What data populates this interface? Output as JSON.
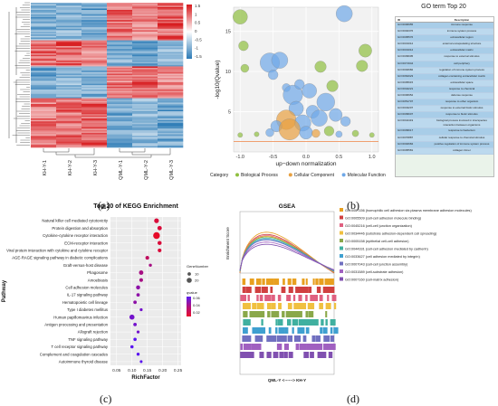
{
  "captions": {
    "a": "(a)",
    "b": "(b)",
    "c": "(c)",
    "d": "(d)"
  },
  "heatmap": {
    "samples": [
      "KH-Y-1",
      "KH-Y-2",
      "KH-Y-3",
      "QML-Y-1",
      "QML-Y-2",
      "QML-Y-3"
    ],
    "legend_ticks": [
      "1.5",
      "1",
      "0.5",
      "0",
      "-0.5",
      "-1",
      "-1.5"
    ],
    "colors": {
      "high": "#d7191c",
      "mid": "#ffffff",
      "low": "#2c7bb6"
    }
  },
  "bubble": {
    "ylabel": "-log10(Qvalue)",
    "xlabel": "up−down normalization",
    "xticks": [
      "-1.0",
      "-0.5",
      "0.0",
      "0.5",
      "1.0"
    ],
    "yticks": [
      "5",
      "10",
      "15"
    ],
    "legend_title": "Category",
    "legend": [
      {
        "name": "Biological Process",
        "color": "#8fbf3f"
      },
      {
        "name": "Cellular Component",
        "color": "#e8a040"
      },
      {
        "name": "Molecular Function",
        "color": "#6fa8e8"
      }
    ]
  },
  "go_table": {
    "title": "GO term Top 20",
    "headers": [
      "ID",
      "Description"
    ],
    "rows": [
      [
        "GO:0006955",
        "immune response"
      ],
      [
        "GO:0002376",
        "immune system process"
      ],
      [
        "GO:0005576",
        "extracellular region"
      ],
      [
        "GO:0031012",
        "external encapsulating structure"
      ],
      [
        "GO:0031012",
        "extracellular matrix"
      ],
      [
        "GO:0009605",
        "response to external stimulus"
      ],
      [
        "GO:0071944",
        "cell periphery"
      ],
      [
        "GO:0002682",
        "regulation of immune system process"
      ],
      [
        "GO:0062023",
        "collagen-containing extracellular matrix"
      ],
      [
        "GO:0005615",
        "extracellular space"
      ],
      [
        "GO:0042221",
        "response to chemical"
      ],
      [
        "GO:0006952",
        "defense response"
      ],
      [
        "GO:0051707",
        "response to other organism"
      ],
      [
        "GO:0043207",
        "response to external biotic stimulus"
      ],
      [
        "GO:0009607",
        "response to biotic stimulus"
      ],
      [
        "GO:0044419",
        "biological process involved in interspecies interaction between organisms"
      ],
      [
        "GO:0009617",
        "response to bacterium"
      ],
      [
        "GO:0070887",
        "cellular response to chemical stimulus"
      ],
      [
        "GO:0002684",
        "positive regulation of immune system process"
      ],
      [
        "GO:0005581",
        "collagen trimer"
      ]
    ]
  },
  "kegg": {
    "title": "Top 20 of KEGG Enrichment",
    "ylabel": "Pathway",
    "xlabel": "RichFactor",
    "xticks": [
      "0.05",
      "0.10",
      "0.15",
      "0.20",
      "0.25"
    ],
    "legend_count_title": "GeneNumber",
    "legend_counts": [
      "10",
      "20"
    ],
    "legend_q_title": "qvalue",
    "legend_q_ticks": [
      "0.06",
      "0.04",
      "0.02"
    ]
  },
  "gsea": {
    "title": "GSEA",
    "ylabel": "Enrichment Score",
    "xlabel": "QML-Y <------> KH-Y",
    "legend": [
      "GO:0007156 (homophilic cell adhesion via plasma membrane adhesion molecules)",
      "GO:0005509 (cell-cell adhesion molecule binding)",
      "GO:0045216 (cell-cell junction organization)",
      "GO:0034446 (substrate adhesion-dependent cell spreading)",
      "GO:0005158 (epithelial cell-cell adhesion)",
      "GO:0044331 (cell-cell adhesion mediated by cadherin)",
      "GO:0033627 (cell adhesion mediated by integrin)",
      "GO:0007043 (cell-cell junction assembly)",
      "GO:0031589 (cell-substrate adhesion)",
      "GO:0007160 (cell-matrix adhesion)"
    ],
    "colors": [
      "#e8a020",
      "#d04040",
      "#e06080",
      "#f0c040",
      "#8aa84a",
      "#40b0a0",
      "#3fa0d0",
      "#7070c0",
      "#a060c0",
      "#8050b0"
    ]
  },
  "chart_data": [
    {
      "type": "heatmap",
      "columns": [
        "KH-Y-1",
        "KH-Y-2",
        "KH-Y-3",
        "QML-Y-1",
        "QML-Y-2",
        "QML-Y-3"
      ],
      "blocks": [
        {
          "fraction": 0.26,
          "values": [
            -1.2,
            -1.1,
            -1.3,
            1.2,
            1.0,
            1.3
          ]
        },
        {
          "fraction": 0.18,
          "values": [
            1.2,
            1.3,
            1.0,
            -1.1,
            -1.3,
            -1.0
          ]
        },
        {
          "fraction": 0.22,
          "values": [
            -1.3,
            -1.0,
            -1.2,
            1.1,
            1.3,
            1.0
          ]
        },
        {
          "fraction": 0.34,
          "values": [
            1.1,
            1.2,
            1.3,
            -1.2,
            -1.0,
            -1.3
          ]
        }
      ],
      "colorbar": [
        -1.5,
        1.5
      ]
    },
    {
      "type": "scatter",
      "xlabel": "up−down normalization",
      "ylabel": "-log10(Qvalue)",
      "xlim": [
        -1.1,
        1.1
      ],
      "ylim": [
        0,
        18
      ],
      "points": [
        {
          "x": -1.0,
          "y": 16.8,
          "size": 9,
          "cat": "Biological Process"
        },
        {
          "x": -0.95,
          "y": 13.2,
          "size": 6,
          "cat": "Biological Process"
        },
        {
          "x": -0.93,
          "y": 10.4,
          "size": 5,
          "cat": "Biological Process"
        },
        {
          "x": 0.58,
          "y": 17.2,
          "size": 10,
          "cat": "Molecular Function"
        },
        {
          "x": 0.9,
          "y": 12.6,
          "size": 8,
          "cat": "Biological Process"
        },
        {
          "x": 0.85,
          "y": 10.7,
          "size": 7,
          "cat": "Biological Process"
        },
        {
          "x": -0.55,
          "y": 11.1,
          "size": 12,
          "cat": "Molecular Function"
        },
        {
          "x": -0.4,
          "y": 11.4,
          "size": 10,
          "cat": "Molecular Function"
        },
        {
          "x": -0.5,
          "y": 9.6,
          "size": 6,
          "cat": "Molecular Function"
        },
        {
          "x": 0.22,
          "y": 10.6,
          "size": 7,
          "cat": "Biological Process"
        },
        {
          "x": -0.3,
          "y": 8.0,
          "size": 5,
          "cat": "Molecular Function"
        },
        {
          "x": -0.2,
          "y": 7.1,
          "size": 12,
          "cat": "Molecular Function"
        },
        {
          "x": -0.1,
          "y": 8.4,
          "size": 6,
          "cat": "Molecular Function"
        },
        {
          "x": 0.05,
          "y": 7.6,
          "size": 9,
          "cat": "Molecular Function"
        },
        {
          "x": 0.3,
          "y": 6.2,
          "size": 11,
          "cat": "Molecular Function"
        },
        {
          "x": 0.4,
          "y": 8.2,
          "size": 7,
          "cat": "Biological Process"
        },
        {
          "x": -0.15,
          "y": 5.4,
          "size": 9,
          "cat": "Molecular Function"
        },
        {
          "x": 0.1,
          "y": 5.0,
          "size": 8,
          "cat": "Molecular Function"
        },
        {
          "x": -0.3,
          "y": 4.0,
          "size": 12,
          "cat": "Cellular Component"
        },
        {
          "x": 0.2,
          "y": 4.2,
          "size": 10,
          "cat": "Molecular Function"
        },
        {
          "x": 0.45,
          "y": 4.6,
          "size": 8,
          "cat": "Molecular Function"
        },
        {
          "x": -0.05,
          "y": 3.6,
          "size": 10,
          "cat": "Molecular Function"
        },
        {
          "x": 0.6,
          "y": 3.8,
          "size": 6,
          "cat": "Molecular Function"
        },
        {
          "x": -0.45,
          "y": 3.2,
          "size": 7,
          "cat": "Molecular Function"
        },
        {
          "x": -0.25,
          "y": 2.8,
          "size": 13,
          "cat": "Cellular Component"
        },
        {
          "x": 0.35,
          "y": 2.6,
          "size": 6,
          "cat": "Biological Process"
        },
        {
          "x": -0.55,
          "y": 2.4,
          "size": 5,
          "cat": "Molecular Function"
        },
        {
          "x": 0.0,
          "y": 2.4,
          "size": 8,
          "cat": "Molecular Function"
        },
        {
          "x": 0.75,
          "y": 2.3,
          "size": 4,
          "cat": "Biological Process"
        },
        {
          "x": 0.15,
          "y": 2.3,
          "size": 5,
          "cat": "Cellular Component"
        },
        {
          "x": -0.75,
          "y": 2.2,
          "size": 3,
          "cat": "Biological Process"
        },
        {
          "x": 0.5,
          "y": 2.2,
          "size": 4,
          "cat": "Molecular Function"
        },
        {
          "x": -1.0,
          "y": 2.1,
          "size": 3,
          "cat": "Biological Process"
        },
        {
          "x": 1.0,
          "y": 2.1,
          "size": 3,
          "cat": "Biological Process"
        }
      ],
      "threshold_y": 1.3
    },
    {
      "type": "scatter",
      "title": "Top 20 of KEGG Enrichment",
      "xlabel": "RichFactor",
      "ylabel": "Pathway",
      "xlim": [
        0.03,
        0.26
      ],
      "categories": [
        "Natural killer cell mediated cytotoxicity",
        "Protein digestion and absorption",
        "Cytokine-cytokine receptor interaction",
        "ECM-receptor interaction",
        "Viral protein interaction with cytokine and cytokine receptor",
        "AGE-RAGE signaling pathway in diabetic complications",
        "Graft-versus-host disease",
        "Phagosome",
        "Amoebiasis",
        "Cell adhesion molecules",
        "IL-17 signaling pathway",
        "Hematopoietic cell lineage",
        "Type I diabetes mellitus",
        "Human papillomavirus infection",
        "Antigen processing and presentation",
        "Allograft rejection",
        "TNF signaling pathway",
        "T cell receptor signaling pathway",
        "Complement and coagulation cascades",
        "Autoimmune thyroid disease"
      ],
      "richfactor": [
        0.18,
        0.19,
        0.18,
        0.19,
        0.19,
        0.15,
        0.16,
        0.13,
        0.13,
        0.12,
        0.12,
        0.11,
        0.13,
        0.1,
        0.11,
        0.12,
        0.11,
        0.1,
        0.12,
        0.13
      ],
      "genenumber": [
        18,
        16,
        30,
        14,
        12,
        12,
        8,
        16,
        12,
        14,
        10,
        10,
        7,
        20,
        10,
        7,
        9,
        9,
        8,
        6
      ],
      "qvalue": [
        0.01,
        0.01,
        0.005,
        0.01,
        0.01,
        0.02,
        0.03,
        0.03,
        0.03,
        0.04,
        0.04,
        0.04,
        0.05,
        0.05,
        0.05,
        0.05,
        0.06,
        0.06,
        0.06,
        0.06
      ]
    },
    {
      "type": "line",
      "title": "GSEA",
      "ylabel": "Enrichment Score",
      "xlabel": "QML-Y <------> KH-Y",
      "series_peaks": [
        0.8,
        0.75,
        0.72,
        0.7,
        0.68,
        0.65,
        0.62,
        0.6,
        0.55,
        0.5
      ]
    }
  ]
}
